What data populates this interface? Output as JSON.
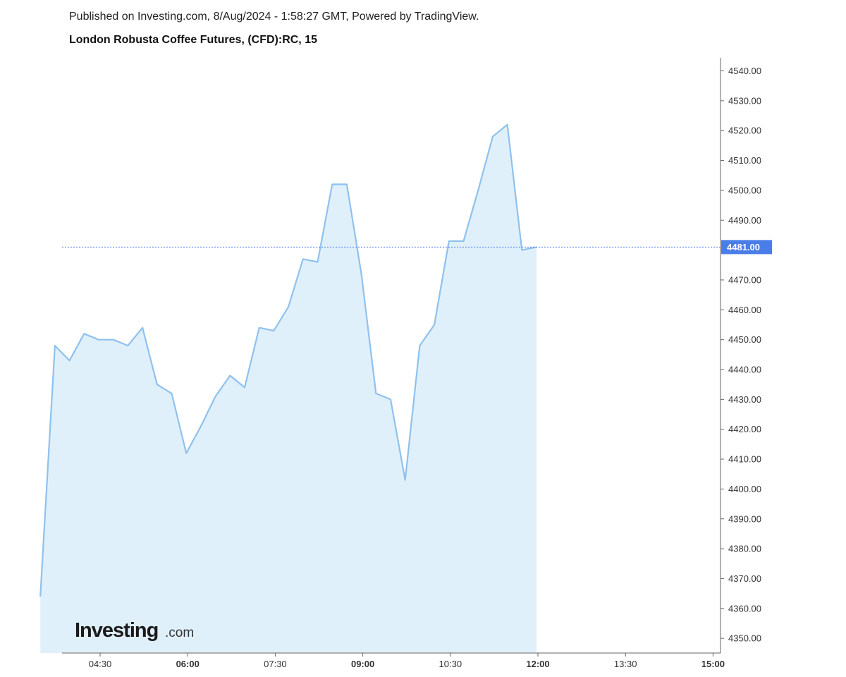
{
  "header": {
    "published": "Published on Investing.com, 8/Aug/2024 - 1:58:27 GMT, Powered by TradingView."
  },
  "logo": {
    "main": "Investing",
    "suffix": ".com"
  },
  "colors": {
    "line": "#8fc1ee",
    "area": "#e0f0fb",
    "current": "#4a7de8",
    "axis": "#666666"
  },
  "chart_data": {
    "type": "area",
    "title": "London Robusta Coffee Futures, (CFD):RC, 15",
    "x_ticks": [
      {
        "label": "04:30",
        "hour": 4.5,
        "major": false
      },
      {
        "label": "06:00",
        "hour": 6.0,
        "major": true
      },
      {
        "label": "07:30",
        "hour": 7.5,
        "major": false
      },
      {
        "label": "09:00",
        "hour": 9.0,
        "major": true
      },
      {
        "label": "10:30",
        "hour": 10.5,
        "major": false
      },
      {
        "label": "12:00",
        "hour": 12.0,
        "major": true
      },
      {
        "label": "13:30",
        "hour": 13.5,
        "major": false
      },
      {
        "label": "15:00",
        "hour": 15.0,
        "major": true
      }
    ],
    "y_ticks": [
      "4350.00",
      "4360.00",
      "4370.00",
      "4380.00",
      "4390.00",
      "4400.00",
      "4410.00",
      "4420.00",
      "4430.00",
      "4440.00",
      "4450.00",
      "4460.00",
      "4470.00",
      "4480.00",
      "4490.00",
      "4500.00",
      "4510.00",
      "4520.00",
      "4530.00",
      "4540.00"
    ],
    "ylim": [
      4345,
      4545
    ],
    "current_value": 4481,
    "current_label": "4481.00",
    "series": [
      {
        "x": [
          "04:00",
          "04:15",
          "04:30",
          "04:45",
          "05:00",
          "05:15",
          "05:30",
          "05:45",
          "06:00",
          "06:15",
          "06:30",
          "06:45",
          "07:00",
          "07:15",
          "07:30",
          "07:45",
          "08:00",
          "08:15",
          "08:30",
          "08:45",
          "09:00",
          "09:15",
          "09:30",
          "09:45",
          "10:00",
          "10:15",
          "10:30",
          "10:45",
          "11:00",
          "11:15",
          "11:30",
          "11:45",
          "12:00",
          "12:15",
          "12:30"
        ],
        "values": [
          4364,
          4448,
          4443,
          4452,
          4450,
          4450,
          4448,
          4454,
          4435,
          4432,
          4412,
          4421,
          4431,
          4438,
          4434,
          4454,
          4453,
          4461,
          4477,
          4476,
          4502,
          4502,
          4472,
          4432,
          4430,
          4403,
          4448,
          4455,
          4483,
          4483,
          4500,
          4518,
          4522,
          4480,
          4481
        ]
      }
    ]
  }
}
